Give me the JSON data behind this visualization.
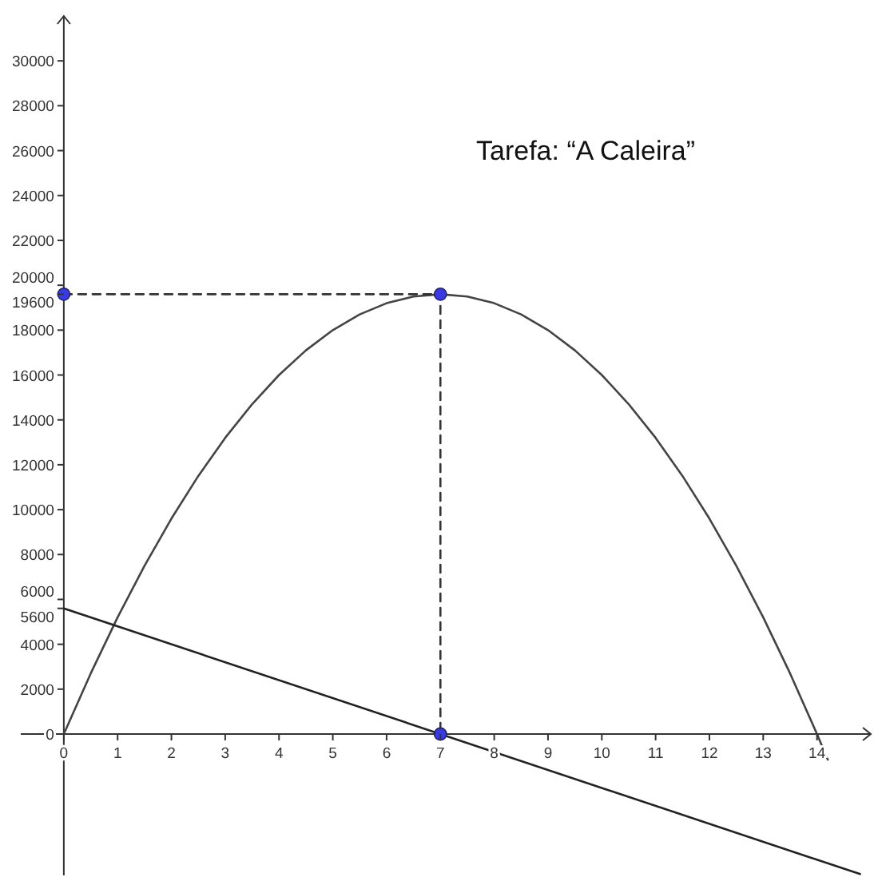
{
  "chart_data": {
    "type": "line",
    "annotations": [
      "Tarefa: “A Caleira”"
    ],
    "xlim": [
      -0.8,
      15
    ],
    "ylim": [
      -6300,
      32000
    ],
    "xticks": [
      0,
      1,
      2,
      3,
      4,
      5,
      6,
      7,
      8,
      9,
      10,
      11,
      12,
      13,
      14
    ],
    "yticks": [
      0,
      2000,
      4000,
      5600,
      6000,
      8000,
      10000,
      12000,
      14000,
      16000,
      18000,
      19600,
      20000,
      22000,
      24000,
      26000,
      28000,
      30000
    ],
    "grid": false,
    "marker": "none",
    "series": [
      {
        "color": "#444444",
        "x": [
          0,
          0.5,
          1,
          1.5,
          2,
          2.5,
          3,
          3.5,
          4,
          4.5,
          5,
          5.5,
          6,
          6.5,
          7,
          7.5,
          8,
          8.5,
          9,
          9.5,
          10,
          10.5,
          11,
          11.5,
          12,
          12.5,
          13,
          13.5,
          14,
          14.2
        ],
        "values": [
          0,
          2700,
          5200,
          7500,
          9600,
          11500,
          13200,
          14700,
          16000,
          17100,
          18000,
          18700,
          19200,
          19500,
          19600,
          19500,
          19200,
          18700,
          18000,
          17100,
          16000,
          14700,
          13200,
          11500,
          9600,
          7500,
          5200,
          2700,
          0,
          -1140
        ]
      },
      {
        "color": "#222222",
        "x": [
          0,
          14.8
        ],
        "values": [
          5600,
          -6240
        ]
      },
      {
        "color": "#333333",
        "line_style": "dashed",
        "x": [
          0,
          7,
          7
        ],
        "values": [
          19600,
          19600,
          0
        ]
      },
      {
        "type": "scatter",
        "color": "#3a3ae0",
        "marker": "circle",
        "x": [
          0,
          7,
          7
        ],
        "values": [
          19600,
          19600,
          0
        ]
      }
    ]
  }
}
